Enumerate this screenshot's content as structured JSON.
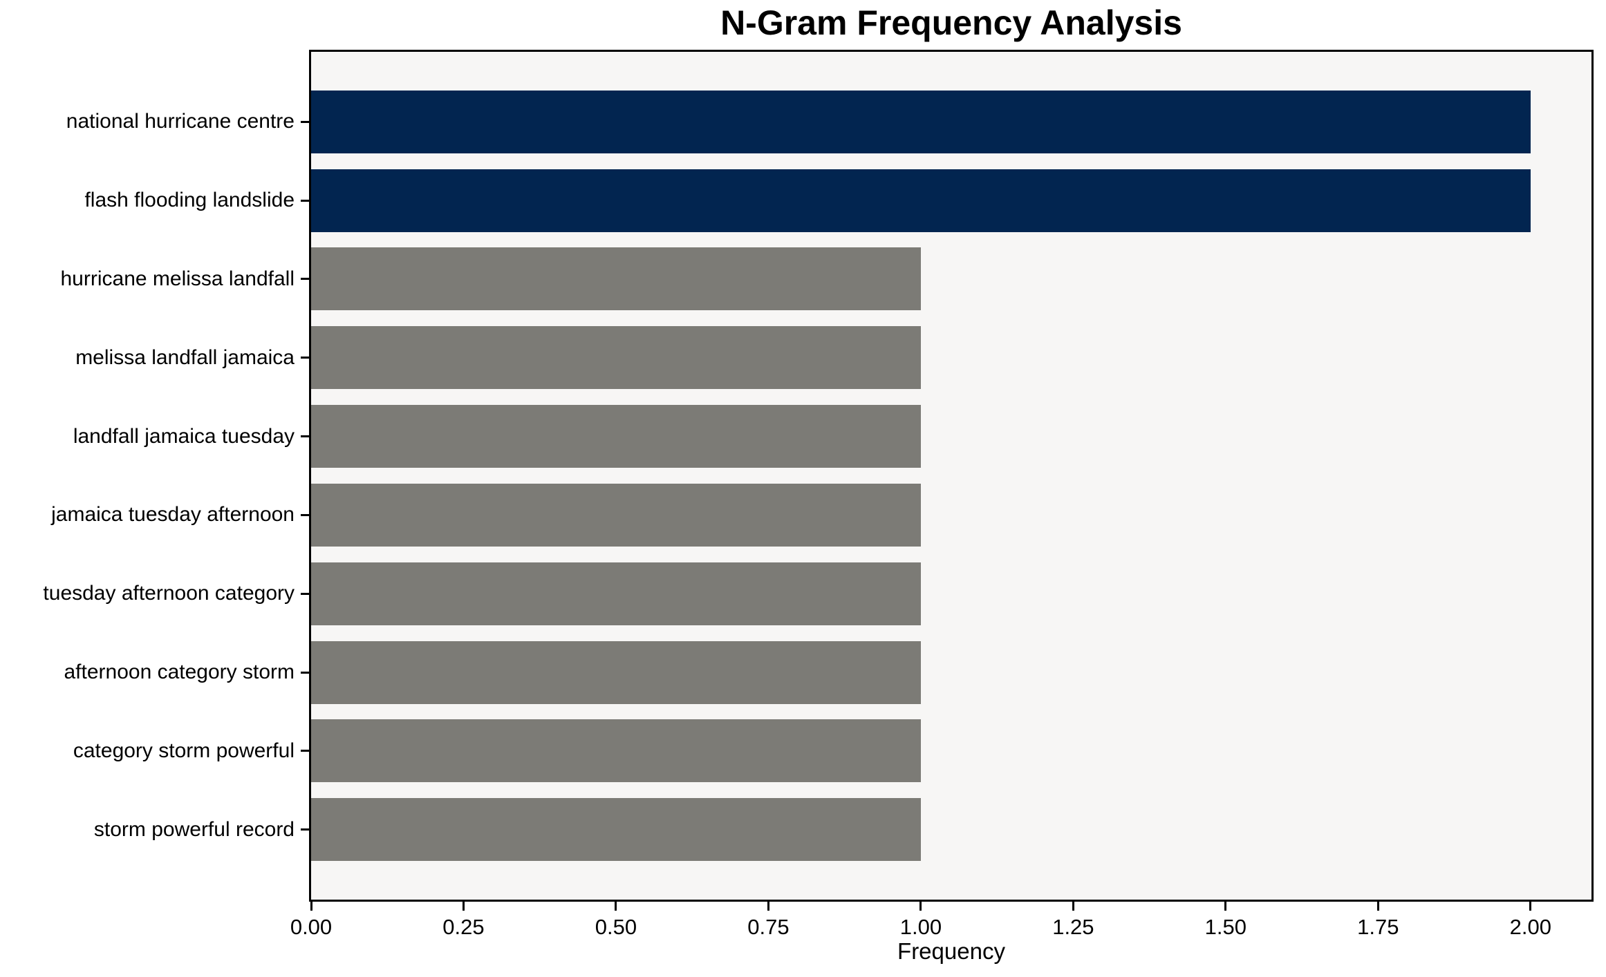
{
  "chart_data": {
    "type": "bar",
    "orientation": "horizontal",
    "title": "N-Gram Frequency Analysis",
    "xlabel": "Frequency",
    "ylabel": "",
    "categories": [
      "national hurricane centre",
      "flash flooding landslide",
      "hurricane melissa landfall",
      "melissa landfall jamaica",
      "landfall jamaica tuesday",
      "jamaica tuesday afternoon",
      "tuesday afternoon category",
      "afternoon category storm",
      "category storm powerful",
      "storm powerful record"
    ],
    "values": [
      2,
      2,
      1,
      1,
      1,
      1,
      1,
      1,
      1,
      1
    ],
    "bar_colors": [
      "#022550",
      "#022550",
      "#7c7b76",
      "#7c7b76",
      "#7c7b76",
      "#7c7b76",
      "#7c7b76",
      "#7c7b76",
      "#7c7b76",
      "#7c7b76"
    ],
    "xlim": [
      0,
      2.1
    ],
    "xticks": [
      0,
      0.25,
      0.5,
      0.75,
      1,
      1.25,
      1.5,
      1.75,
      2
    ],
    "xtick_labels": [
      "0.00",
      "0.25",
      "0.50",
      "0.75",
      "1.00",
      "1.25",
      "1.50",
      "1.75",
      "2.00"
    ],
    "grid": false,
    "legend": false,
    "colors": {
      "highlight_bar": "#022550",
      "default_bar": "#7c7b76",
      "plot_background": "#f7f6f5",
      "figure_background": "#ffffff",
      "spine": "#000000",
      "text": "#000000"
    },
    "bar_height_fraction": 0.8
  }
}
